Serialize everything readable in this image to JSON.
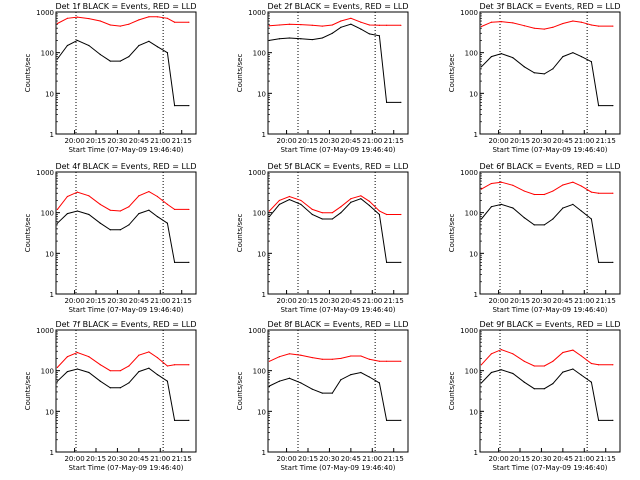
{
  "colors": {
    "events": "#000000",
    "lld": "#ff0000",
    "axis": "#000000",
    "marker": "#000000"
  },
  "chart_data": [
    {
      "type": "line",
      "title": "Det 1f BLACK = Events, RED = LLD",
      "xlabel": "Start Time (07-May-09 19:46:40)",
      "ylabel": "Counts/sec",
      "y_scale": "log",
      "ylim": [
        1,
        1000
      ],
      "xlim": [
        "19:47",
        "21:25"
      ],
      "x_ticks": [
        "20:00",
        "20:15",
        "20:30",
        "20:45",
        "21:00",
        "21:15"
      ],
      "y_ticks": [
        "1",
        "10",
        "100",
        "1000"
      ],
      "markers": [
        "20:01",
        "21:02"
      ],
      "grid": false,
      "series": [
        {
          "name": "LLD",
          "color": "#ff0000",
          "x": [
            "19:48",
            "19:55",
            "20:02",
            "20:10",
            "20:18",
            "20:25",
            "20:32",
            "20:38",
            "20:45",
            "20:52",
            "20:58",
            "21:05",
            "21:10",
            "21:20"
          ],
          "y": [
            520,
            700,
            750,
            690,
            600,
            480,
            450,
            500,
            640,
            760,
            760,
            700,
            560,
            560
          ]
        },
        {
          "name": "Events",
          "color": "#000000",
          "x": [
            "19:48",
            "19:55",
            "20:02",
            "20:10",
            "20:18",
            "20:25",
            "20:32",
            "20:38",
            "20:45",
            "20:52",
            "20:58",
            "21:05",
            "21:10",
            "21:20"
          ],
          "y": [
            70,
            150,
            200,
            150,
            90,
            62,
            62,
            80,
            150,
            190,
            140,
            100,
            5,
            5
          ]
        }
      ]
    },
    {
      "type": "line",
      "title": "Det 2f BLACK = Events, RED = LLD",
      "xlabel": "Start Time (07-May-09 19:46:40)",
      "ylabel": "Counts/sec",
      "y_scale": "log",
      "ylim": [
        1,
        1000
      ],
      "xlim": [
        "19:47",
        "21:25"
      ],
      "x_ticks": [
        "20:00",
        "20:15",
        "20:30",
        "20:45",
        "21:00",
        "21:15"
      ],
      "y_ticks": [
        "1",
        "10",
        "100",
        "1000"
      ],
      "markers": [
        "20:08",
        "21:02"
      ],
      "grid": false,
      "series": [
        {
          "name": "LLD",
          "color": "#ff0000",
          "x": [
            "19:48",
            "19:55",
            "20:02",
            "20:10",
            "20:18",
            "20:25",
            "20:32",
            "20:38",
            "20:45",
            "20:52",
            "20:58",
            "21:05",
            "21:10",
            "21:20"
          ],
          "y": [
            460,
            480,
            500,
            490,
            470,
            450,
            480,
            600,
            700,
            560,
            480,
            470,
            470,
            470
          ]
        },
        {
          "name": "Events",
          "color": "#000000",
          "x": [
            "19:48",
            "19:55",
            "20:02",
            "20:10",
            "20:18",
            "20:25",
            "20:32",
            "20:38",
            "20:45",
            "20:52",
            "20:58",
            "21:05",
            "21:10",
            "21:20"
          ],
          "y": [
            200,
            220,
            230,
            220,
            210,
            230,
            300,
            420,
            500,
            380,
            290,
            260,
            6,
            6
          ]
        }
      ]
    },
    {
      "type": "line",
      "title": "Det 3f BLACK = Events, RED = LLD",
      "xlabel": "Start Time (07-May-09 19:46:40)",
      "ylabel": "Counts/sec",
      "y_scale": "log",
      "ylim": [
        1,
        1000
      ],
      "xlim": [
        "19:47",
        "21:25"
      ],
      "x_ticks": [
        "20:00",
        "20:15",
        "20:30",
        "20:45",
        "21:00",
        "21:15"
      ],
      "y_ticks": [
        "1",
        "10",
        "100",
        "1000"
      ],
      "markers": [
        "20:01",
        "21:02"
      ],
      "grid": false,
      "series": [
        {
          "name": "LLD",
          "color": "#ff0000",
          "x": [
            "19:48",
            "19:55",
            "20:02",
            "20:10",
            "20:18",
            "20:25",
            "20:32",
            "20:38",
            "20:45",
            "20:52",
            "20:58",
            "21:05",
            "21:10",
            "21:20"
          ],
          "y": [
            440,
            560,
            580,
            540,
            460,
            400,
            380,
            420,
            520,
            600,
            560,
            480,
            450,
            450
          ]
        },
        {
          "name": "Events",
          "color": "#000000",
          "x": [
            "19:48",
            "19:55",
            "20:02",
            "20:10",
            "20:18",
            "20:25",
            "20:32",
            "20:38",
            "20:45",
            "20:52",
            "20:58",
            "21:05",
            "21:10",
            "21:20"
          ],
          "y": [
            45,
            80,
            95,
            75,
            45,
            32,
            30,
            40,
            80,
            100,
            80,
            60,
            5,
            5
          ]
        }
      ]
    },
    {
      "type": "line",
      "title": "Det 4f BLACK = Events, RED = LLD",
      "xlabel": "Start Time (07-May-09 19:46:40)",
      "ylabel": "Counts/sec",
      "y_scale": "log",
      "ylim": [
        1,
        1000
      ],
      "xlim": [
        "19:47",
        "21:25"
      ],
      "x_ticks": [
        "20:00",
        "20:15",
        "20:30",
        "20:45",
        "21:00",
        "21:15"
      ],
      "y_ticks": [
        "1",
        "10",
        "100",
        "1000"
      ],
      "markers": [
        "20:01",
        "21:02"
      ],
      "grid": false,
      "series": [
        {
          "name": "LLD",
          "color": "#ff0000",
          "x": [
            "19:48",
            "19:55",
            "20:02",
            "20:10",
            "20:18",
            "20:25",
            "20:32",
            "20:38",
            "20:45",
            "20:52",
            "20:58",
            "21:05",
            "21:10",
            "21:20"
          ],
          "y": [
            120,
            250,
            320,
            260,
            160,
            115,
            110,
            140,
            260,
            330,
            250,
            160,
            120,
            120
          ]
        },
        {
          "name": "Events",
          "color": "#000000",
          "x": [
            "19:48",
            "19:55",
            "20:02",
            "20:10",
            "20:18",
            "20:25",
            "20:32",
            "20:38",
            "20:45",
            "20:52",
            "20:58",
            "21:05",
            "21:10",
            "21:20"
          ],
          "y": [
            55,
            95,
            110,
            90,
            55,
            38,
            38,
            50,
            95,
            115,
            80,
            55,
            6,
            6
          ]
        }
      ]
    },
    {
      "type": "line",
      "title": "Det 5f BLACK = Events, RED = LLD",
      "xlabel": "Start Time (07-May-09 19:46:40)",
      "ylabel": "Counts/sec",
      "y_scale": "log",
      "ylim": [
        1,
        1000
      ],
      "xlim": [
        "19:47",
        "21:25"
      ],
      "x_ticks": [
        "20:00",
        "20:15",
        "20:30",
        "20:45",
        "21:00",
        "21:15"
      ],
      "y_ticks": [
        "1",
        "10",
        "100",
        "1000"
      ],
      "markers": [
        "20:08",
        "21:02"
      ],
      "grid": false,
      "series": [
        {
          "name": "LLD",
          "color": "#ff0000",
          "x": [
            "19:48",
            "19:55",
            "20:02",
            "20:10",
            "20:18",
            "20:25",
            "20:32",
            "20:38",
            "20:45",
            "20:52",
            "20:58",
            "21:05",
            "21:10",
            "21:20"
          ],
          "y": [
            110,
            200,
            250,
            200,
            120,
            100,
            100,
            140,
            220,
            260,
            190,
            110,
            90,
            90
          ]
        },
        {
          "name": "Events",
          "color": "#000000",
          "x": [
            "19:48",
            "19:55",
            "20:02",
            "20:10",
            "20:18",
            "20:25",
            "20:32",
            "20:38",
            "20:45",
            "20:52",
            "20:58",
            "21:05",
            "21:10",
            "21:20"
          ],
          "y": [
            80,
            160,
            210,
            160,
            90,
            70,
            70,
            100,
            180,
            220,
            150,
            90,
            6,
            6
          ]
        }
      ]
    },
    {
      "type": "line",
      "title": "Det 6f BLACK = Events, RED = LLD",
      "xlabel": "Start Time (07-May-09 19:46:40)",
      "ylabel": "Counts/sec",
      "y_scale": "log",
      "ylim": [
        1,
        1000
      ],
      "xlim": [
        "19:47",
        "21:25"
      ],
      "x_ticks": [
        "20:00",
        "20:15",
        "20:30",
        "20:45",
        "21:00",
        "21:15"
      ],
      "y_ticks": [
        "1",
        "10",
        "100",
        "1000"
      ],
      "markers": [
        "20:01",
        "21:02"
      ],
      "grid": false,
      "series": [
        {
          "name": "LLD",
          "color": "#ff0000",
          "x": [
            "19:48",
            "19:55",
            "20:02",
            "20:10",
            "20:18",
            "20:25",
            "20:32",
            "20:38",
            "20:45",
            "20:52",
            "20:58",
            "21:05",
            "21:10",
            "21:20"
          ],
          "y": [
            380,
            520,
            560,
            470,
            340,
            280,
            280,
            340,
            480,
            560,
            450,
            320,
            300,
            300
          ]
        },
        {
          "name": "Events",
          "color": "#000000",
          "x": [
            "19:48",
            "19:55",
            "20:02",
            "20:10",
            "20:18",
            "20:25",
            "20:32",
            "20:38",
            "20:45",
            "20:52",
            "20:58",
            "21:05",
            "21:10",
            "21:20"
          ],
          "y": [
            70,
            140,
            160,
            130,
            75,
            50,
            50,
            70,
            130,
            160,
            110,
            70,
            6,
            6
          ]
        }
      ]
    },
    {
      "type": "line",
      "title": "Det 7f BLACK = Events, RED = LLD",
      "xlabel": "Start Time (07-May-09 19:46:40)",
      "ylabel": "Counts/sec",
      "y_scale": "log",
      "ylim": [
        1,
        1000
      ],
      "xlim": [
        "19:47",
        "21:25"
      ],
      "x_ticks": [
        "20:00",
        "20:15",
        "20:30",
        "20:45",
        "21:00",
        "21:15"
      ],
      "y_ticks": [
        "1",
        "10",
        "100",
        "1000"
      ],
      "markers": [
        "20:01",
        "21:02"
      ],
      "grid": false,
      "series": [
        {
          "name": "LLD",
          "color": "#ff0000",
          "x": [
            "19:48",
            "19:55",
            "20:02",
            "20:10",
            "20:18",
            "20:25",
            "20:32",
            "20:38",
            "20:45",
            "20:52",
            "20:58",
            "21:05",
            "21:10",
            "21:20"
          ],
          "y": [
            120,
            220,
            280,
            220,
            140,
            100,
            100,
            130,
            240,
            290,
            210,
            130,
            140,
            140
          ]
        },
        {
          "name": "Events",
          "color": "#000000",
          "x": [
            "19:48",
            "19:55",
            "20:02",
            "20:10",
            "20:18",
            "20:25",
            "20:32",
            "20:38",
            "20:45",
            "20:52",
            "20:58",
            "21:05",
            "21:10",
            "21:20"
          ],
          "y": [
            55,
            95,
            110,
            90,
            55,
            38,
            38,
            50,
            95,
            115,
            80,
            55,
            6,
            6
          ]
        }
      ]
    },
    {
      "type": "line",
      "title": "Det 8f BLACK = Events, RED = LLD",
      "xlabel": "Start Time (07-May-09 19:46:40)",
      "ylabel": "Counts/sec",
      "y_scale": "log",
      "ylim": [
        1,
        1000
      ],
      "xlim": [
        "19:47",
        "21:25"
      ],
      "x_ticks": [
        "20:00",
        "20:15",
        "20:30",
        "20:45",
        "21:00",
        "21:15"
      ],
      "y_ticks": [
        "1",
        "10",
        "100",
        "1000"
      ],
      "markers": [
        "20:08",
        "21:02"
      ],
      "grid": false,
      "series": [
        {
          "name": "LLD",
          "color": "#ff0000",
          "x": [
            "19:48",
            "19:55",
            "20:02",
            "20:10",
            "20:18",
            "20:25",
            "20:32",
            "20:38",
            "20:45",
            "20:52",
            "20:58",
            "21:05",
            "21:10",
            "21:20"
          ],
          "y": [
            170,
            220,
            260,
            240,
            210,
            190,
            190,
            200,
            230,
            230,
            190,
            170,
            170,
            170
          ]
        },
        {
          "name": "Events",
          "color": "#000000",
          "x": [
            "19:48",
            "19:55",
            "20:02",
            "20:10",
            "20:18",
            "20:25",
            "20:32",
            "20:38",
            "20:45",
            "20:52",
            "20:58",
            "21:05",
            "21:10",
            "21:20"
          ],
          "y": [
            42,
            55,
            65,
            50,
            35,
            28,
            28,
            60,
            80,
            90,
            70,
            50,
            6,
            6
          ]
        }
      ]
    },
    {
      "type": "line",
      "title": "Det 9f BLACK = Events, RED = LLD",
      "xlabel": "Start Time (07-May-09 19:46:40)",
      "ylabel": "Counts/sec",
      "y_scale": "log",
      "ylim": [
        1,
        1000
      ],
      "xlim": [
        "19:47",
        "21:25"
      ],
      "x_ticks": [
        "20:00",
        "20:15",
        "20:30",
        "20:45",
        "21:00",
        "21:15"
      ],
      "y_ticks": [
        "1",
        "10",
        "100",
        "1000"
      ],
      "markers": [
        "20:01",
        "21:02"
      ],
      "grid": false,
      "series": [
        {
          "name": "LLD",
          "color": "#ff0000",
          "x": [
            "19:48",
            "19:55",
            "20:02",
            "20:10",
            "20:18",
            "20:25",
            "20:32",
            "20:38",
            "20:45",
            "20:52",
            "20:58",
            "21:05",
            "21:10",
            "21:20"
          ],
          "y": [
            140,
            260,
            330,
            260,
            170,
            130,
            130,
            170,
            280,
            320,
            230,
            150,
            140,
            140
          ]
        },
        {
          "name": "Events",
          "color": "#000000",
          "x": [
            "19:48",
            "19:55",
            "20:02",
            "20:10",
            "20:18",
            "20:25",
            "20:32",
            "20:38",
            "20:45",
            "20:52",
            "20:58",
            "21:05",
            "21:10",
            "21:20"
          ],
          "y": [
            50,
            90,
            105,
            85,
            52,
            36,
            36,
            48,
            92,
            110,
            78,
            52,
            6,
            6
          ]
        }
      ]
    }
  ]
}
